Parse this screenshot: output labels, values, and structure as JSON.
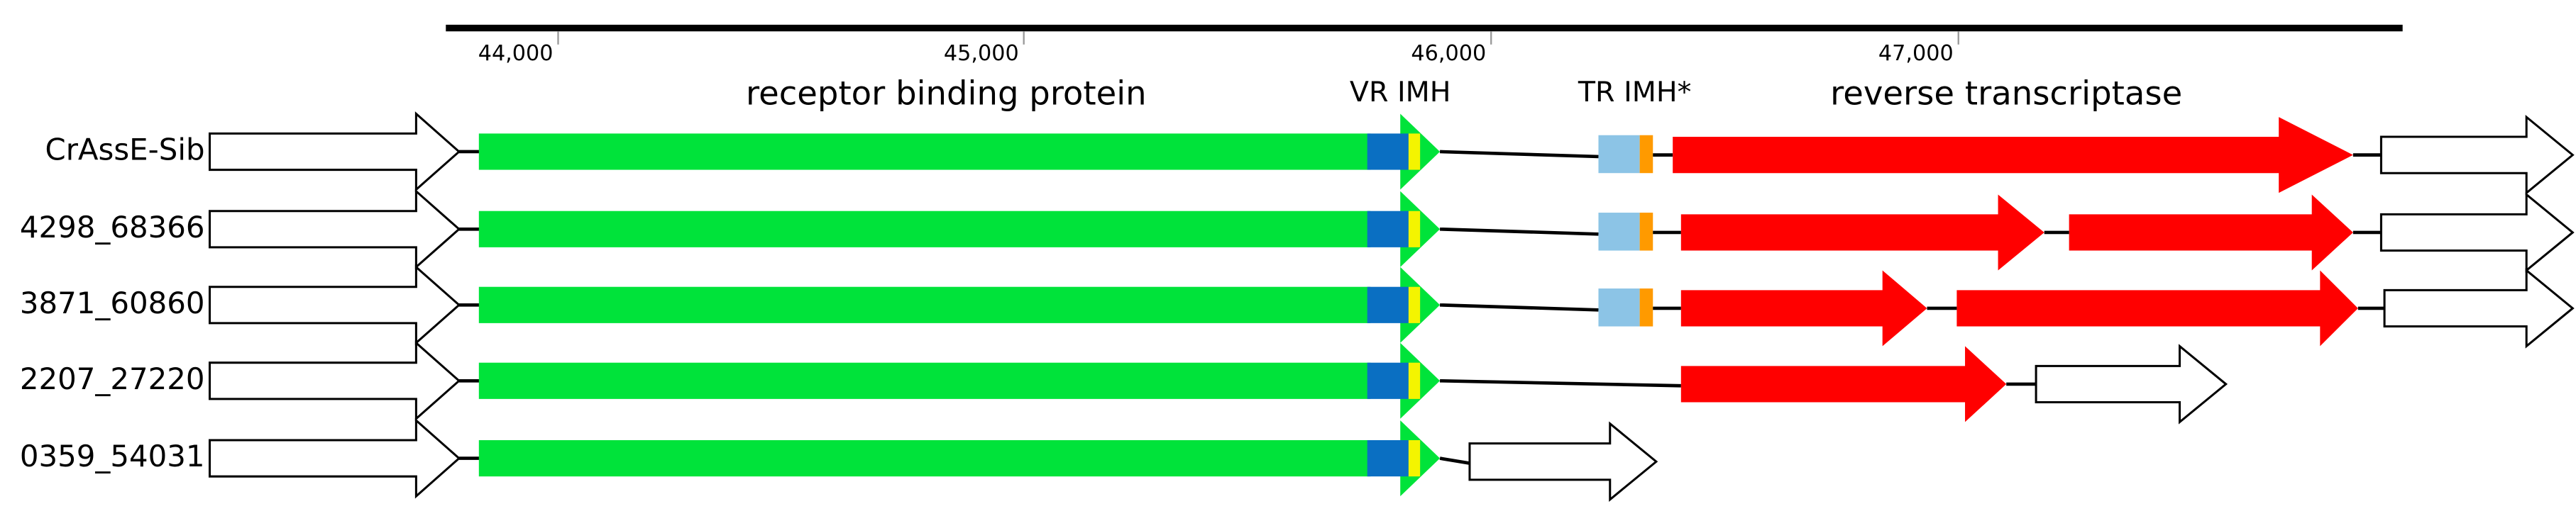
{
  "axis": {
    "ticks": [
      "44,000",
      "45,000",
      "46,000",
      "47,000"
    ]
  },
  "labels": {
    "receptor": "receptor binding protein",
    "vr": "VR IMH",
    "tr": "TR IMH*",
    "rt": "reverse transcriptase"
  },
  "rows": [
    "CrAssE-Sib",
    "4298_68366",
    "3871_60860",
    "2207_27220",
    "0359_54031"
  ]
}
